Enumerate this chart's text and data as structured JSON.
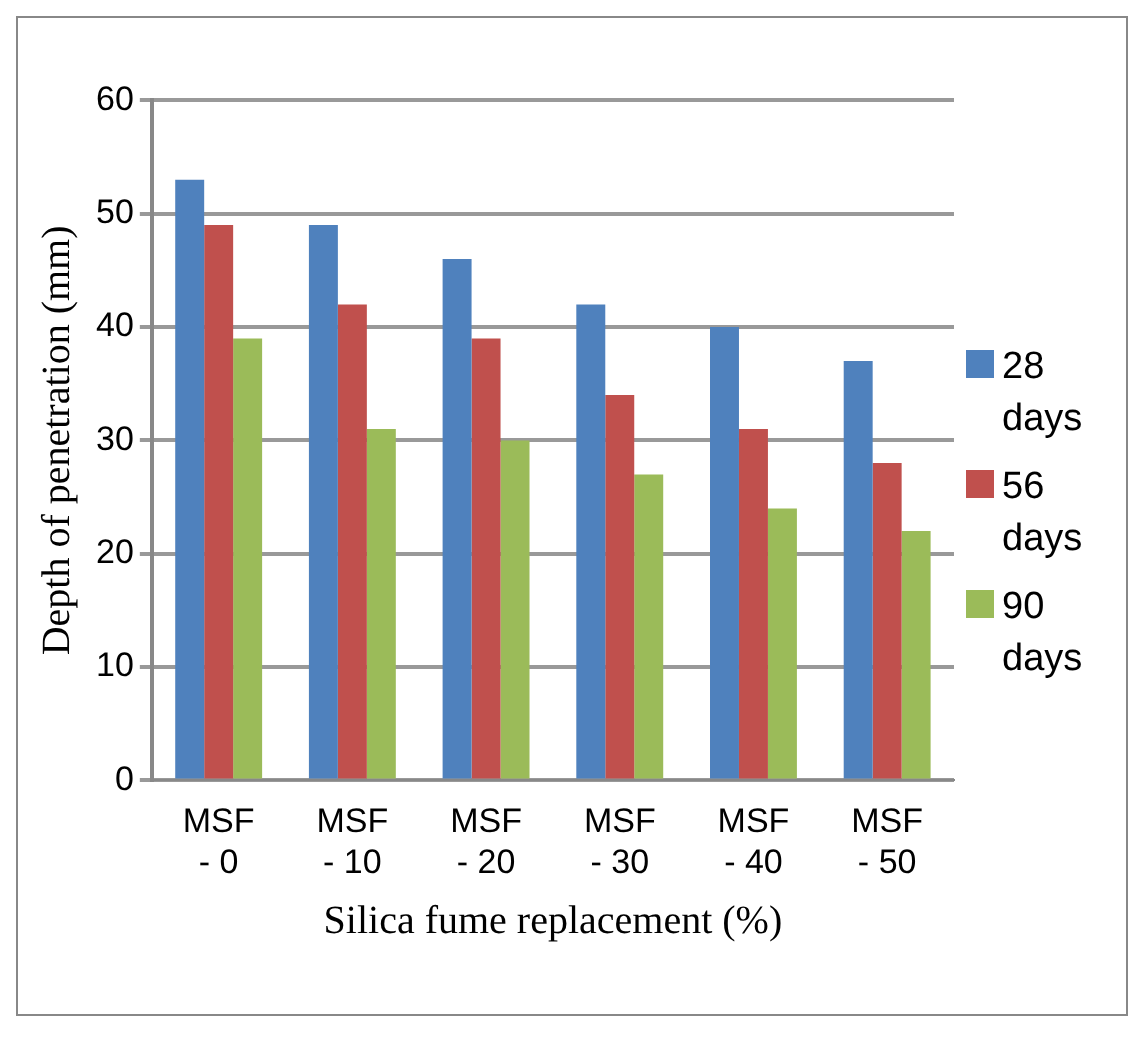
{
  "chart_data": {
    "type": "bar",
    "xlabel": "Silica fume replacement (%)",
    "ylabel": "Depth of penetration (mm)",
    "categories": [
      "MSF - 0",
      "MSF - 10",
      "MSF - 20",
      "MSF - 30",
      "MSF - 40",
      "MSF - 50"
    ],
    "series": [
      {
        "name": "28 days",
        "color": "#4f81bd",
        "values": [
          53,
          49,
          46,
          42,
          40,
          37
        ]
      },
      {
        "name": "56 days",
        "color": "#c0504d",
        "values": [
          49,
          42,
          39,
          34,
          31,
          28
        ]
      },
      {
        "name": "90 days",
        "color": "#9bbb59",
        "values": [
          39,
          31,
          30,
          27,
          24,
          22
        ]
      }
    ],
    "ylim": [
      0,
      60
    ],
    "yticks": [
      0,
      10,
      20,
      30,
      40,
      50,
      60
    ],
    "grid": "y",
    "legend": "right"
  }
}
